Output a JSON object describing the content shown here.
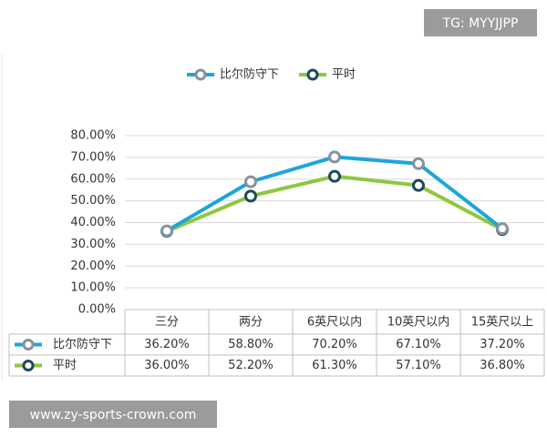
{
  "chart_data": {
    "type": "line",
    "categories": [
      "三分",
      "两分",
      "6英尺以内",
      "10英尺以内",
      "15英尺以上"
    ],
    "series": [
      {
        "name": "比尔防守下",
        "color": "#1aa6dc",
        "marker_color": "#8593a0",
        "values": [
          36.2,
          58.8,
          70.2,
          67.1,
          37.2
        ],
        "value_labels": [
          "36.20%",
          "58.80%",
          "70.20%",
          "67.10%",
          "37.20%"
        ]
      },
      {
        "name": "平时",
        "color": "#8dc73f",
        "marker_color": "#1d4a5c",
        "values": [
          36.0,
          52.2,
          61.3,
          57.1,
          36.8
        ],
        "value_labels": [
          "36.00%",
          "52.20%",
          "61.30%",
          "57.10%",
          "36.80%"
        ]
      }
    ],
    "ylim": [
      0,
      80
    ],
    "yticks": [
      {
        "value": 0,
        "label": "0.00%"
      },
      {
        "value": 10,
        "label": "10.00%"
      },
      {
        "value": 20,
        "label": "20.00%"
      },
      {
        "value": 30,
        "label": "30.00%"
      },
      {
        "value": 40,
        "label": "40.00%"
      },
      {
        "value": 50,
        "label": "50.00%"
      },
      {
        "value": 60,
        "label": "60.00%"
      },
      {
        "value": 70,
        "label": "70.00%"
      },
      {
        "value": 80,
        "label": "80.00%"
      }
    ],
    "grid": true,
    "legend": "top",
    "data_table": true
  },
  "watermark_top": "TG: MYYJJPP",
  "watermark_bottom": "www.zy-sports-crown.com"
}
